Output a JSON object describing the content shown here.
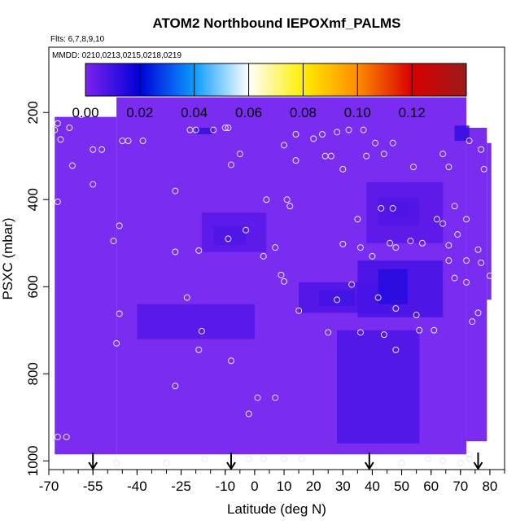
{
  "chart_data": {
    "type": "heatmap",
    "title": "ATOM2 Northbound IEPOXmf_PALMS",
    "flights_note": "Flts: 6,7,8,9,10",
    "dates_note": "MMDD: 0210,0213,0215,0218,0219",
    "xlabel": "Latitude (deg N)",
    "ylabel": "PSXC (mbar)",
    "xlim": [
      -70,
      85
    ],
    "ylim": [
      1020,
      50
    ],
    "y_reversed": true,
    "x_ticks": [
      -70,
      -55,
      -40,
      -25,
      -10,
      0,
      10,
      20,
      30,
      40,
      50,
      60,
      70,
      80
    ],
    "x_tick_labels": [
      "-70",
      "-55",
      "-40",
      "-25",
      "-10",
      "0",
      "10",
      "20",
      "30",
      "40",
      "50",
      "60",
      "70",
      "80"
    ],
    "y_ticks": [
      200,
      400,
      600,
      800,
      1000
    ],
    "y_tick_labels": [
      "200",
      "400",
      "600",
      "800",
      "1000"
    ],
    "colorbar": {
      "min": 0,
      "max": 0.14,
      "ticks": [
        0,
        0.02,
        0.04,
        0.06,
        0.08,
        0.1,
        0.12
      ],
      "tick_labels": [
        "0.00",
        "0.02",
        "0.04",
        "0.06",
        "0.08",
        "0.10",
        "0.12"
      ],
      "colors": [
        "#7e22ef",
        "#0000d8",
        "#0a9cff",
        "#ffffff",
        "#ffee00",
        "#ff8c00",
        "#d80000",
        "#9b1b1b"
      ]
    },
    "background_value": 0.006,
    "background_color": "#7a2df0",
    "coverage": [
      {
        "x": [
          -68,
          -47
        ],
        "y": [
          210,
          985
        ]
      },
      {
        "x": [
          -47,
          72
        ],
        "y": [
          165,
          985
        ]
      },
      {
        "x": [
          72,
          79
        ],
        "y": [
          235,
          955
        ]
      },
      {
        "x": [
          79,
          80.5
        ],
        "y": [
          270,
          630
        ]
      }
    ],
    "anomalies": [
      {
        "x": [
          -14,
          -3
        ],
        "y": [
          460,
          505
        ],
        "value": 0.014
      },
      {
        "x": [
          -9,
          -3
        ],
        "y": [
          475,
          495
        ],
        "value": 0.024
      },
      {
        "x": [
          -18,
          4
        ],
        "y": [
          430,
          520
        ],
        "value": 0.006
      },
      {
        "x": [
          22,
          34
        ],
        "y": [
          608,
          645
        ],
        "value": 0.016
      },
      {
        "x": [
          27,
          33
        ],
        "y": [
          615,
          640
        ],
        "value": 0.024
      },
      {
        "x": [
          15,
          46
        ],
        "y": [
          590,
          660
        ],
        "value": 0.008
      },
      {
        "x": [
          42,
          56
        ],
        "y": [
          395,
          460
        ],
        "value": 0.012
      },
      {
        "x": [
          46,
          52
        ],
        "y": [
          405,
          440
        ],
        "value": 0.02
      },
      {
        "x": [
          38,
          64
        ],
        "y": [
          360,
          500
        ],
        "value": 0.006
      },
      {
        "x": [
          35,
          64
        ],
        "y": [
          540,
          670
        ],
        "value": 0.009
      },
      {
        "x": [
          42,
          52
        ],
        "y": [
          560,
          640
        ],
        "value": 0.014
      },
      {
        "x": [
          28,
          56
        ],
        "y": [
          700,
          960
        ],
        "value": 0.008
      },
      {
        "x": [
          -40,
          0
        ],
        "y": [
          640,
          720
        ],
        "value": 0.007
      },
      {
        "x": [
          -20,
          -14
        ],
        "y": [
          235,
          250
        ],
        "value": 0.012
      },
      {
        "x": [
          68,
          73
        ],
        "y": [
          230,
          265
        ],
        "value": 0.012
      }
    ],
    "points": [
      [
        -63,
        235
      ],
      [
        -59,
        205
      ],
      [
        -67,
        225
      ],
      [
        -66,
        262
      ],
      [
        -62,
        322
      ],
      [
        -68,
        240
      ],
      [
        -67,
        405
      ],
      [
        -55,
        285
      ],
      [
        -52,
        285
      ],
      [
        -55,
        365
      ],
      [
        -45,
        265
      ],
      [
        -43,
        265
      ],
      [
        -38,
        265
      ],
      [
        -48,
        495
      ],
      [
        -46,
        460
      ],
      [
        -46,
        662
      ],
      [
        -47,
        730
      ],
      [
        -67,
        945
      ],
      [
        -64,
        945
      ],
      [
        -47,
        1005
      ],
      [
        -27,
        380
      ],
      [
        -22,
        240
      ],
      [
        -20,
        240
      ],
      [
        -14,
        240
      ],
      [
        -10,
        235
      ],
      [
        -9,
        235
      ],
      [
        -5,
        295
      ],
      [
        -8,
        320
      ],
      [
        -19,
        517
      ],
      [
        -27,
        520
      ],
      [
        -23,
        625
      ],
      [
        -18,
        702
      ],
      [
        -19,
        745
      ],
      [
        -8,
        770
      ],
      [
        -27,
        828
      ],
      [
        -30,
        1005
      ],
      [
        -17,
        995
      ],
      [
        -8,
        995
      ],
      [
        -2,
        995
      ],
      [
        3,
        995
      ],
      [
        -2,
        892
      ],
      [
        1,
        855
      ],
      [
        7,
        855
      ],
      [
        10,
        995
      ],
      [
        16,
        995
      ],
      [
        -9,
        490
      ],
      [
        -3,
        470
      ],
      [
        3,
        530
      ],
      [
        7,
        510
      ],
      [
        4,
        400
      ],
      [
        9,
        573
      ],
      [
        10,
        588
      ],
      [
        11,
        400
      ],
      [
        12,
        415
      ],
      [
        15,
        655
      ],
      [
        14,
        250
      ],
      [
        10,
        275
      ],
      [
        14,
        310
      ],
      [
        20,
        260
      ],
      [
        23,
        250
      ],
      [
        28,
        245
      ],
      [
        32,
        240
      ],
      [
        37,
        240
      ],
      [
        24,
        300
      ],
      [
        26,
        300
      ],
      [
        30,
        330
      ],
      [
        35,
        445
      ],
      [
        30,
        502
      ],
      [
        36,
        510
      ],
      [
        28,
        630
      ],
      [
        33,
        595
      ],
      [
        25,
        705
      ],
      [
        36,
        705
      ],
      [
        41,
        270
      ],
      [
        38,
        300
      ],
      [
        44,
        295
      ],
      [
        47,
        420
      ],
      [
        48,
        510
      ],
      [
        46,
        500
      ],
      [
        40,
        530
      ],
      [
        43,
        420
      ],
      [
        42,
        625
      ],
      [
        53,
        495
      ],
      [
        57,
        500
      ],
      [
        55,
        665
      ],
      [
        56,
        700
      ],
      [
        61,
        700
      ],
      [
        64,
        295
      ],
      [
        66,
        325
      ],
      [
        62,
        445
      ],
      [
        66,
        505
      ],
      [
        66,
        540
      ],
      [
        48,
        650
      ],
      [
        50,
        1005
      ],
      [
        59,
        995
      ],
      [
        64,
        1000
      ],
      [
        70,
        1005
      ],
      [
        73,
        995
      ],
      [
        73,
        985
      ],
      [
        68,
        415
      ],
      [
        69,
        480
      ],
      [
        72,
        445
      ],
      [
        72,
        540
      ],
      [
        68,
        580
      ],
      [
        72,
        590
      ],
      [
        76,
        515
      ],
      [
        78,
        330
      ],
      [
        73,
        265
      ],
      [
        77,
        285
      ],
      [
        80,
        575
      ],
      [
        76,
        660
      ],
      [
        74,
        680
      ],
      [
        77,
        545
      ],
      [
        48,
        745
      ],
      [
        44,
        710
      ],
      [
        47,
        270
      ],
      [
        54,
        325
      ],
      [
        64,
        455
      ]
    ],
    "arrows": [
      -55,
      -8,
      39,
      76
    ]
  }
}
